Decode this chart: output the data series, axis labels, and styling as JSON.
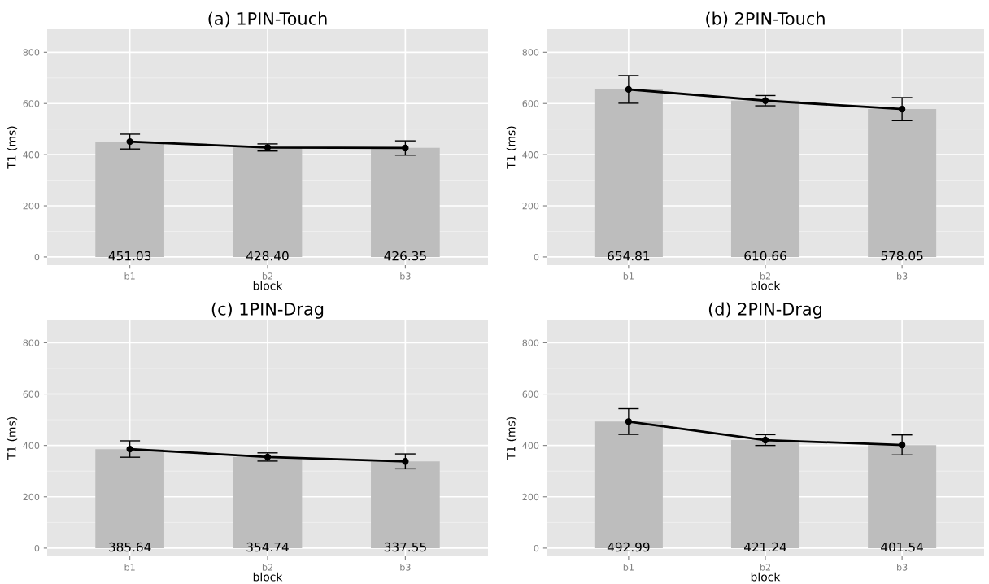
{
  "chart_data": [
    {
      "type": "bar",
      "title": "(a) 1PIN-Touch",
      "xlabel": "block",
      "ylabel": "T1 (ms)",
      "categories": [
        "b1",
        "b2",
        "b3"
      ],
      "ylim": [
        -32,
        890
      ],
      "yticks": [
        0,
        200,
        400,
        600,
        800
      ],
      "grid": true,
      "series": [
        {
          "color": "#bdbdbd",
          "values": [
            451.03,
            428.4,
            426.35
          ],
          "value_labels": [
            "451.03",
            "428.40",
            "426.35"
          ]
        },
        {
          "type": "line",
          "color": "#000000",
          "marker": "circle",
          "values": [
            451,
            428,
            426
          ],
          "errors": [
            29,
            14,
            28
          ]
        }
      ]
    },
    {
      "type": "bar",
      "title": "(b) 2PIN-Touch",
      "xlabel": "block",
      "ylabel": "T1 (ms)",
      "categories": [
        "b1",
        "b2",
        "b3"
      ],
      "ylim": [
        -32,
        890
      ],
      "yticks": [
        0,
        200,
        400,
        600,
        800
      ],
      "grid": true,
      "series": [
        {
          "color": "#bdbdbd",
          "values": [
            654.81,
            610.66,
            578.05
          ],
          "value_labels": [
            "654.81",
            "610.66",
            "578.05"
          ]
        },
        {
          "type": "line",
          "color": "#000000",
          "marker": "circle",
          "values": [
            655,
            611,
            578
          ],
          "errors": [
            54,
            20,
            45
          ]
        }
      ]
    },
    {
      "type": "bar",
      "title": "(c) 1PIN-Drag",
      "xlabel": "block",
      "ylabel": "T1 (ms)",
      "categories": [
        "b1",
        "b2",
        "b3"
      ],
      "ylim": [
        -32,
        890
      ],
      "yticks": [
        0,
        200,
        400,
        600,
        800
      ],
      "grid": true,
      "series": [
        {
          "color": "#bdbdbd",
          "values": [
            385.64,
            354.74,
            337.55
          ],
          "value_labels": [
            "385.64",
            "354.74",
            "337.55"
          ]
        },
        {
          "type": "line",
          "color": "#000000",
          "marker": "circle",
          "values": [
            386,
            355,
            338
          ],
          "errors": [
            32,
            16,
            29
          ]
        }
      ]
    },
    {
      "type": "bar",
      "title": "(d) 2PIN-Drag",
      "xlabel": "block",
      "ylabel": "T1 (ms)",
      "categories": [
        "b1",
        "b2",
        "b3"
      ],
      "ylim": [
        -32,
        890
      ],
      "yticks": [
        0,
        200,
        400,
        600,
        800
      ],
      "grid": true,
      "series": [
        {
          "color": "#bdbdbd",
          "values": [
            492.99,
            421.24,
            401.54
          ],
          "value_labels": [
            "492.99",
            "421.24",
            "401.54"
          ]
        },
        {
          "type": "line",
          "color": "#000000",
          "marker": "circle",
          "values": [
            493,
            421,
            402
          ],
          "errors": [
            50,
            21,
            39
          ]
        }
      ]
    }
  ]
}
